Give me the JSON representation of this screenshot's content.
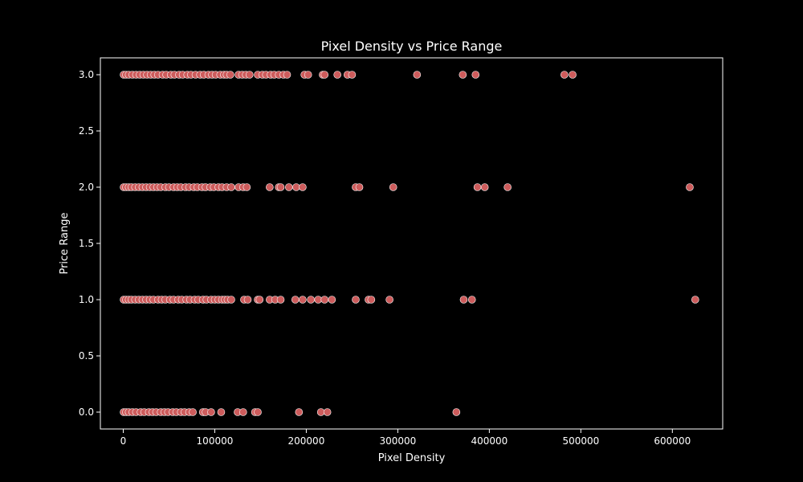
{
  "chart_data": {
    "type": "scatter",
    "title": "Pixel Density vs Price Range",
    "xlabel": "Pixel Density",
    "ylabel": "Price Range",
    "xlim": [
      -25000,
      655000
    ],
    "ylim": [
      -0.15,
      3.15
    ],
    "xticks": [
      0,
      100000,
      200000,
      300000,
      400000,
      500000,
      600000
    ],
    "xtick_labels": [
      "0",
      "100000",
      "200000",
      "300000",
      "400000",
      "500000",
      "600000"
    ],
    "yticks": [
      0.0,
      0.5,
      1.0,
      1.5,
      2.0,
      2.5,
      3.0
    ],
    "ytick_labels": [
      "0.0",
      "0.5",
      "1.0",
      "1.5",
      "2.0",
      "2.5",
      "3.0"
    ],
    "grid": false,
    "marker_color": "#cd5c5c",
    "marker_edge_color": "#ffffff",
    "points": [
      {
        "x": 500,
        "y": 3
      },
      {
        "x": 3000,
        "y": 3
      },
      {
        "x": 6000,
        "y": 3
      },
      {
        "x": 10000,
        "y": 3
      },
      {
        "x": 14000,
        "y": 3
      },
      {
        "x": 18000,
        "y": 3
      },
      {
        "x": 22000,
        "y": 3
      },
      {
        "x": 26000,
        "y": 3
      },
      {
        "x": 30000,
        "y": 3
      },
      {
        "x": 34000,
        "y": 3
      },
      {
        "x": 38000,
        "y": 3
      },
      {
        "x": 43000,
        "y": 3
      },
      {
        "x": 47000,
        "y": 3
      },
      {
        "x": 52000,
        "y": 3
      },
      {
        "x": 56000,
        "y": 3
      },
      {
        "x": 61000,
        "y": 3
      },
      {
        "x": 65000,
        "y": 3
      },
      {
        "x": 70000,
        "y": 3
      },
      {
        "x": 74000,
        "y": 3
      },
      {
        "x": 79000,
        "y": 3
      },
      {
        "x": 84000,
        "y": 3
      },
      {
        "x": 88000,
        "y": 3
      },
      {
        "x": 93000,
        "y": 3
      },
      {
        "x": 97000,
        "y": 3
      },
      {
        "x": 101000,
        "y": 3
      },
      {
        "x": 106000,
        "y": 3
      },
      {
        "x": 110000,
        "y": 3
      },
      {
        "x": 113000,
        "y": 3
      },
      {
        "x": 117000,
        "y": 3
      },
      {
        "x": 126000,
        "y": 3
      },
      {
        "x": 130000,
        "y": 3
      },
      {
        "x": 134000,
        "y": 3
      },
      {
        "x": 138000,
        "y": 3
      },
      {
        "x": 147000,
        "y": 3
      },
      {
        "x": 152000,
        "y": 3
      },
      {
        "x": 156000,
        "y": 3
      },
      {
        "x": 161000,
        "y": 3
      },
      {
        "x": 165000,
        "y": 3
      },
      {
        "x": 170000,
        "y": 3
      },
      {
        "x": 175000,
        "y": 3
      },
      {
        "x": 179000,
        "y": 3
      },
      {
        "x": 198000,
        "y": 3
      },
      {
        "x": 202000,
        "y": 3
      },
      {
        "x": 218000,
        "y": 3
      },
      {
        "x": 220000,
        "y": 3
      },
      {
        "x": 234000,
        "y": 3
      },
      {
        "x": 245000,
        "y": 3
      },
      {
        "x": 250000,
        "y": 3
      },
      {
        "x": 321000,
        "y": 3
      },
      {
        "x": 371000,
        "y": 3
      },
      {
        "x": 385000,
        "y": 3
      },
      {
        "x": 482000,
        "y": 3
      },
      {
        "x": 491000,
        "y": 3
      },
      {
        "x": 500,
        "y": 2
      },
      {
        "x": 3000,
        "y": 2
      },
      {
        "x": 6000,
        "y": 2
      },
      {
        "x": 9000,
        "y": 2
      },
      {
        "x": 13000,
        "y": 2
      },
      {
        "x": 17000,
        "y": 2
      },
      {
        "x": 21000,
        "y": 2
      },
      {
        "x": 25000,
        "y": 2
      },
      {
        "x": 29000,
        "y": 2
      },
      {
        "x": 33000,
        "y": 2
      },
      {
        "x": 37000,
        "y": 2
      },
      {
        "x": 41000,
        "y": 2
      },
      {
        "x": 46000,
        "y": 2
      },
      {
        "x": 50000,
        "y": 2
      },
      {
        "x": 55000,
        "y": 2
      },
      {
        "x": 59000,
        "y": 2
      },
      {
        "x": 63000,
        "y": 2
      },
      {
        "x": 68000,
        "y": 2
      },
      {
        "x": 72000,
        "y": 2
      },
      {
        "x": 77000,
        "y": 2
      },
      {
        "x": 81000,
        "y": 2
      },
      {
        "x": 86000,
        "y": 2
      },
      {
        "x": 90000,
        "y": 2
      },
      {
        "x": 95000,
        "y": 2
      },
      {
        "x": 99000,
        "y": 2
      },
      {
        "x": 104000,
        "y": 2
      },
      {
        "x": 108000,
        "y": 2
      },
      {
        "x": 113000,
        "y": 2
      },
      {
        "x": 118000,
        "y": 2
      },
      {
        "x": 126000,
        "y": 2
      },
      {
        "x": 131000,
        "y": 2
      },
      {
        "x": 135000,
        "y": 2
      },
      {
        "x": 160000,
        "y": 2
      },
      {
        "x": 170000,
        "y": 2
      },
      {
        "x": 172000,
        "y": 2
      },
      {
        "x": 181000,
        "y": 2
      },
      {
        "x": 189000,
        "y": 2
      },
      {
        "x": 196000,
        "y": 2
      },
      {
        "x": 254000,
        "y": 2
      },
      {
        "x": 258000,
        "y": 2
      },
      {
        "x": 295000,
        "y": 2
      },
      {
        "x": 387000,
        "y": 2
      },
      {
        "x": 395000,
        "y": 2
      },
      {
        "x": 420000,
        "y": 2
      },
      {
        "x": 619000,
        "y": 2
      },
      {
        "x": 500,
        "y": 1
      },
      {
        "x": 3000,
        "y": 1
      },
      {
        "x": 6000,
        "y": 1
      },
      {
        "x": 9000,
        "y": 1
      },
      {
        "x": 13000,
        "y": 1
      },
      {
        "x": 17000,
        "y": 1
      },
      {
        "x": 21000,
        "y": 1
      },
      {
        "x": 25000,
        "y": 1
      },
      {
        "x": 29000,
        "y": 1
      },
      {
        "x": 33000,
        "y": 1
      },
      {
        "x": 38000,
        "y": 1
      },
      {
        "x": 42000,
        "y": 1
      },
      {
        "x": 46000,
        "y": 1
      },
      {
        "x": 51000,
        "y": 1
      },
      {
        "x": 55000,
        "y": 1
      },
      {
        "x": 60000,
        "y": 1
      },
      {
        "x": 64000,
        "y": 1
      },
      {
        "x": 69000,
        "y": 1
      },
      {
        "x": 73000,
        "y": 1
      },
      {
        "x": 78000,
        "y": 1
      },
      {
        "x": 82000,
        "y": 1
      },
      {
        "x": 87000,
        "y": 1
      },
      {
        "x": 91000,
        "y": 1
      },
      {
        "x": 96000,
        "y": 1
      },
      {
        "x": 100000,
        "y": 1
      },
      {
        "x": 104000,
        "y": 1
      },
      {
        "x": 108000,
        "y": 1
      },
      {
        "x": 111000,
        "y": 1
      },
      {
        "x": 114000,
        "y": 1
      },
      {
        "x": 118000,
        "y": 1
      },
      {
        "x": 132000,
        "y": 1
      },
      {
        "x": 136000,
        "y": 1
      },
      {
        "x": 147000,
        "y": 1
      },
      {
        "x": 149000,
        "y": 1
      },
      {
        "x": 160000,
        "y": 1
      },
      {
        "x": 166000,
        "y": 1
      },
      {
        "x": 172000,
        "y": 1
      },
      {
        "x": 188000,
        "y": 1
      },
      {
        "x": 196000,
        "y": 1
      },
      {
        "x": 205000,
        "y": 1
      },
      {
        "x": 213000,
        "y": 1
      },
      {
        "x": 220000,
        "y": 1
      },
      {
        "x": 228000,
        "y": 1
      },
      {
        "x": 254000,
        "y": 1
      },
      {
        "x": 268000,
        "y": 1
      },
      {
        "x": 271000,
        "y": 1
      },
      {
        "x": 291000,
        "y": 1
      },
      {
        "x": 372000,
        "y": 1
      },
      {
        "x": 381000,
        "y": 1
      },
      {
        "x": 625000,
        "y": 1
      },
      {
        "x": 500,
        "y": 0
      },
      {
        "x": 3000,
        "y": 0
      },
      {
        "x": 6000,
        "y": 0
      },
      {
        "x": 10000,
        "y": 0
      },
      {
        "x": 14000,
        "y": 0
      },
      {
        "x": 19000,
        "y": 0
      },
      {
        "x": 23000,
        "y": 0
      },
      {
        "x": 28000,
        "y": 0
      },
      {
        "x": 32000,
        "y": 0
      },
      {
        "x": 36000,
        "y": 0
      },
      {
        "x": 41000,
        "y": 0
      },
      {
        "x": 45000,
        "y": 0
      },
      {
        "x": 49000,
        "y": 0
      },
      {
        "x": 54000,
        "y": 0
      },
      {
        "x": 58000,
        "y": 0
      },
      {
        "x": 63000,
        "y": 0
      },
      {
        "x": 67000,
        "y": 0
      },
      {
        "x": 72000,
        "y": 0
      },
      {
        "x": 76000,
        "y": 0
      },
      {
        "x": 87000,
        "y": 0
      },
      {
        "x": 90000,
        "y": 0
      },
      {
        "x": 96000,
        "y": 0
      },
      {
        "x": 107000,
        "y": 0
      },
      {
        "x": 125000,
        "y": 0
      },
      {
        "x": 131000,
        "y": 0
      },
      {
        "x": 144000,
        "y": 0
      },
      {
        "x": 147000,
        "y": 0
      },
      {
        "x": 192000,
        "y": 0
      },
      {
        "x": 216000,
        "y": 0
      },
      {
        "x": 223000,
        "y": 0
      },
      {
        "x": 364000,
        "y": 0
      }
    ]
  }
}
